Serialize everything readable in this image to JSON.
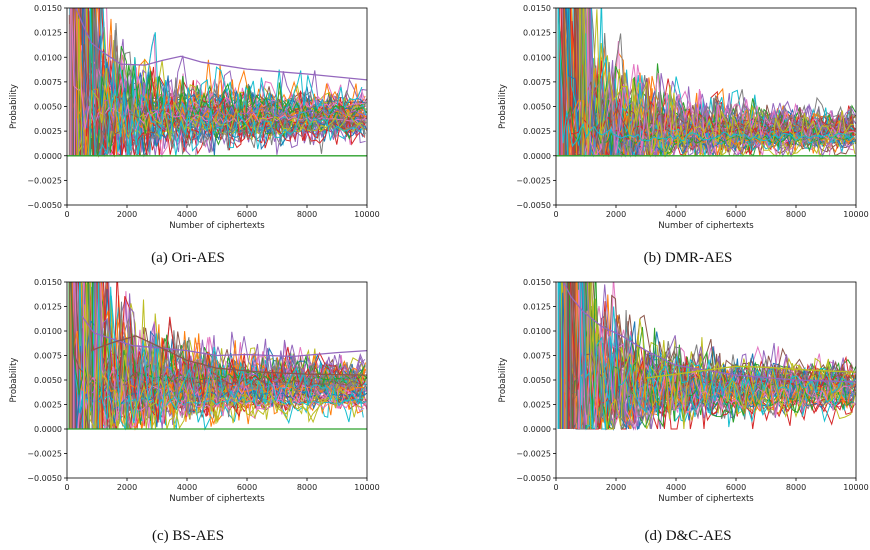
{
  "page": {
    "background": "#ffffff"
  },
  "chart_data": [
    {
      "type": "line",
      "caption": "(a) Ori-AES",
      "xlabel": "Number of ciphertexts",
      "ylabel": "Probability",
      "xlim": [
        0,
        10000
      ],
      "ylim": [
        -0.005,
        0.015
      ],
      "xticks": [
        "0",
        "2000",
        "4000",
        "6000",
        "8000",
        "10000"
      ],
      "yticks": [
        "−0.0050",
        "−0.0025",
        "0.0000",
        "0.0025",
        "0.0050",
        "0.0075",
        "0.0100",
        "0.0125",
        "0.0150"
      ],
      "grid": false,
      "series_count": 256,
      "band_final_range": [
        0.0025,
        0.0055
      ],
      "highlight_series": [
        {
          "color": "#9467bd",
          "points": [
            [
              300,
              0.015
            ],
            [
              500,
              0.0135
            ],
            [
              800,
              0.0115
            ],
            [
              1200,
              0.0105
            ],
            [
              1800,
              0.0093
            ],
            [
              2600,
              0.0092
            ],
            [
              3200,
              0.0097
            ],
            [
              3800,
              0.0101
            ],
            [
              4500,
              0.0095
            ],
            [
              6000,
              0.0088
            ],
            [
              8000,
              0.0083
            ],
            [
              10000,
              0.0077
            ]
          ]
        },
        {
          "color": "#2ca02c",
          "points": [
            [
              0,
              0.0
            ],
            [
              10000,
              0.0
            ]
          ]
        }
      ],
      "colors": [
        "#1f77b4",
        "#ff7f0e",
        "#2ca02c",
        "#d62728",
        "#9467bd",
        "#8c564b",
        "#e377c2",
        "#7f7f7f",
        "#bcbd22",
        "#17becf"
      ]
    },
    {
      "type": "line",
      "caption": "(b) DMR-AES",
      "xlabel": "Number of ciphertexts",
      "ylabel": "Probability",
      "xlim": [
        0,
        10000
      ],
      "ylim": [
        -0.005,
        0.015
      ],
      "xticks": [
        "0",
        "2000",
        "4000",
        "6000",
        "8000",
        "10000"
      ],
      "yticks": [
        "−0.0050",
        "−0.0025",
        "0.0000",
        "0.0025",
        "0.0050",
        "0.0075",
        "0.0100",
        "0.0125",
        "0.0150"
      ],
      "grid": false,
      "series_count": 256,
      "band_final_range": [
        0.0012,
        0.0033
      ],
      "highlight_series": [
        {
          "color": "#2ca02c",
          "points": [
            [
              0,
              0.0
            ],
            [
              10000,
              0.0
            ]
          ]
        }
      ],
      "colors": [
        "#1f77b4",
        "#ff7f0e",
        "#2ca02c",
        "#d62728",
        "#9467bd",
        "#8c564b",
        "#e377c2",
        "#7f7f7f",
        "#bcbd22",
        "#17becf"
      ]
    },
    {
      "type": "line",
      "caption": "(c) BS-AES",
      "xlabel": "Number of ciphertexts",
      "ylabel": "Probability",
      "xlim": [
        0,
        10000
      ],
      "ylim": [
        -0.005,
        0.015
      ],
      "xticks": [
        "0",
        "2000",
        "4000",
        "6000",
        "8000",
        "10000"
      ],
      "yticks": [
        "−0.0050",
        "−0.0025",
        "0.0000",
        "0.0025",
        "0.0050",
        "0.0075",
        "0.0100",
        "0.0125",
        "0.0150"
      ],
      "grid": false,
      "series_count": 256,
      "band_final_range": [
        0.0025,
        0.0058
      ],
      "highlight_series": [
        {
          "color": "#9467bd",
          "points": [
            [
              500,
              0.0115
            ],
            [
              900,
              0.0098
            ],
            [
              1500,
              0.0092
            ],
            [
              2200,
              0.0085
            ],
            [
              3000,
              0.0083
            ],
            [
              4000,
              0.008
            ],
            [
              5000,
              0.0075
            ],
            [
              6000,
              0.0076
            ],
            [
              7500,
              0.0074
            ],
            [
              9000,
              0.0078
            ],
            [
              10000,
              0.008
            ]
          ]
        },
        {
          "color": "#8c564b",
          "points": [
            [
              800,
              0.008
            ],
            [
              1500,
              0.0088
            ],
            [
              2300,
              0.0095
            ],
            [
              3000,
              0.0085
            ],
            [
              4000,
              0.007
            ],
            [
              5000,
              0.0062
            ],
            [
              6500,
              0.0058
            ],
            [
              8000,
              0.0056
            ],
            [
              10000,
              0.0055
            ]
          ]
        },
        {
          "color": "#2ca02c",
          "points": [
            [
              0,
              0.0
            ],
            [
              10000,
              0.0
            ]
          ]
        }
      ],
      "colors": [
        "#1f77b4",
        "#ff7f0e",
        "#2ca02c",
        "#d62728",
        "#9467bd",
        "#8c564b",
        "#e377c2",
        "#7f7f7f",
        "#bcbd22",
        "#17becf"
      ]
    },
    {
      "type": "line",
      "caption": "(d) D&C-AES",
      "xlabel": "Number of ciphertexts",
      "ylabel": "Probability",
      "xlim": [
        0,
        10000
      ],
      "ylim": [
        -0.005,
        0.015
      ],
      "xticks": [
        "0",
        "2000",
        "4000",
        "6000",
        "8000",
        "10000"
      ],
      "yticks": [
        "−0.0050",
        "−0.0025",
        "0.0000",
        "0.0025",
        "0.0050",
        "0.0075",
        "0.0100",
        "0.0125",
        "0.0150"
      ],
      "grid": false,
      "series_count": 256,
      "band_final_range": [
        0.0025,
        0.0058
      ],
      "highlight_series": [
        {
          "color": "#9467bd",
          "points": [
            [
              250,
              0.015
            ],
            [
              500,
              0.0135
            ],
            [
              900,
              0.012
            ],
            [
              1500,
              0.0105
            ],
            [
              2200,
              0.0095
            ],
            [
              3000,
              0.008
            ],
            [
              4000,
              0.0065
            ],
            [
              6000,
              0.0055
            ],
            [
              8000,
              0.005
            ],
            [
              10000,
              0.0048
            ]
          ]
        },
        {
          "color": "#bcbd22",
          "points": [
            [
              3000,
              0.0052
            ],
            [
              4500,
              0.0058
            ],
            [
              6000,
              0.0064
            ],
            [
              7000,
              0.0063
            ],
            [
              8500,
              0.006
            ],
            [
              10000,
              0.0058
            ]
          ]
        }
      ],
      "colors": [
        "#1f77b4",
        "#ff7f0e",
        "#2ca02c",
        "#d62728",
        "#9467bd",
        "#8c564b",
        "#e377c2",
        "#7f7f7f",
        "#bcbd22",
        "#17becf"
      ]
    }
  ]
}
